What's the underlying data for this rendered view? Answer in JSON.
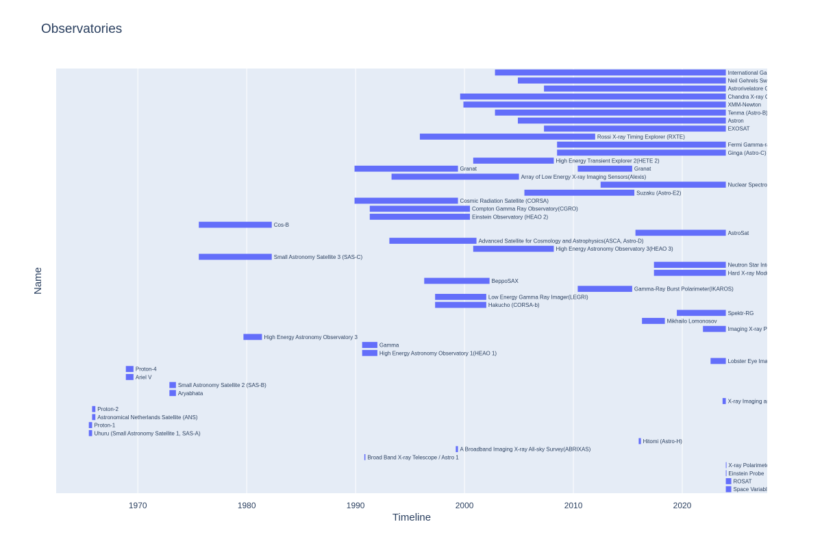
{
  "colors": {
    "bar": "#636efa",
    "plot_bg": "#e5ecf6",
    "grid": "#ffffff",
    "text": "#2a3f5f"
  },
  "chart_data": {
    "type": "bar",
    "orientation": "horizontal-timeline",
    "title": "Observatories",
    "xlabel": "Timeline",
    "ylabel": "Name",
    "xlim": [
      1962.5,
      2027.8
    ],
    "xticks": [
      1970,
      1980,
      1990,
      2000,
      2010,
      2020
    ],
    "grid": true,
    "show_ytick_labels": false,
    "rows": [
      {
        "label": "International Gamma-Ray Astrophysics Laboratory",
        "bars": [
          [
            2002.8,
            2024.0
          ]
        ]
      },
      {
        "label": "Neil Gehrels Swift Observatory",
        "bars": [
          [
            2004.9,
            2024.0
          ]
        ]
      },
      {
        "label": "Astrorivelatore Gamma ad Immagini Leggero",
        "bars": [
          [
            2007.3,
            2024.0
          ]
        ]
      },
      {
        "label": "Chandra X-ray Observatory",
        "bars": [
          [
            1999.6,
            2024.0
          ]
        ]
      },
      {
        "label": "XMM-Newton",
        "bars": [
          [
            1999.9,
            2024.0
          ]
        ]
      },
      {
        "label": "Tenma (Astro-B)",
        "bars": [
          [
            2002.8,
            2024.0
          ]
        ]
      },
      {
        "label": "Astron",
        "bars": [
          [
            2004.9,
            2024.0
          ]
        ]
      },
      {
        "label": "EXOSAT",
        "bars": [
          [
            2007.3,
            2024.0
          ]
        ]
      },
      {
        "label": "Rossi X-ray Timing Explorer (RXTE)",
        "bars": [
          [
            1995.9,
            2012.0
          ]
        ]
      },
      {
        "label": "Fermi Gamma-ray Space Telescope",
        "bars": [
          [
            2008.5,
            2024.0
          ]
        ]
      },
      {
        "label": "Ginga (Astro-C)",
        "bars": [
          [
            2008.5,
            2024.0
          ]
        ]
      },
      {
        "label": "High Energy Transient Explorer 2(HETE 2)",
        "bars": [
          [
            2000.8,
            2008.2
          ]
        ]
      },
      {
        "label": "Granat",
        "bars": [
          [
            1989.9,
            1999.4
          ],
          [
            2010.4,
            2015.4
          ]
        ]
      },
      {
        "label": "Array of Low Energy X-ray Imaging Sensors(Alexis)",
        "bars": [
          [
            1993.3,
            2005.0
          ]
        ]
      },
      {
        "label": "Nuclear Spectroscopic Telescope Array",
        "bars": [
          [
            2012.5,
            2024.0
          ]
        ]
      },
      {
        "label": "Suzaku (Astro-E2)",
        "bars": [
          [
            2005.5,
            2015.6
          ]
        ]
      },
      {
        "label": "Cosmic Radiation Satellite (CORSA)",
        "bars": [
          [
            1989.9,
            1999.4
          ]
        ]
      },
      {
        "label": "Compton Gamma Ray Observatory(CGRO)",
        "bars": [
          [
            1991.3,
            2000.5
          ]
        ]
      },
      {
        "label": "Einstein Observatory (HEAO 2)",
        "bars": [
          [
            1991.3,
            2000.5
          ]
        ]
      },
      {
        "label": "Cos-B",
        "bars": [
          [
            1975.6,
            1982.3
          ]
        ]
      },
      {
        "label": "AstroSat",
        "bars": [
          [
            2015.7,
            2024.0
          ]
        ]
      },
      {
        "label": "Advanced Satellite for Cosmology and Astrophysics(ASCA, Astro-D)",
        "bars": [
          [
            1993.1,
            2001.1
          ]
        ]
      },
      {
        "label": "High Energy Astronomy Observatory 3(HEAO 3)",
        "bars": [
          [
            2000.8,
            2008.2
          ]
        ]
      },
      {
        "label": "Small Astronomy Satellite 3 (SAS-C)",
        "bars": [
          [
            1975.6,
            1982.3
          ]
        ]
      },
      {
        "label": "Neutron Star Interior Composition Explorer",
        "bars": [
          [
            2017.4,
            2024.0
          ]
        ]
      },
      {
        "label": "Hard X-ray Modulation Telescope",
        "bars": [
          [
            2017.4,
            2024.0
          ]
        ]
      },
      {
        "label": "BeppoSAX",
        "bars": [
          [
            1996.3,
            2002.3
          ]
        ]
      },
      {
        "label": "Gamma-Ray Burst Polarimeter(IKAROS)",
        "bars": [
          [
            2010.4,
            2015.4
          ]
        ]
      },
      {
        "label": "Low Energy Gamma Ray Imager(LEGRI)",
        "bars": [
          [
            1997.3,
            2002.0
          ]
        ]
      },
      {
        "label": "Hakucho (CORSA-b)",
        "bars": [
          [
            1997.3,
            2002.0
          ]
        ]
      },
      {
        "label": "Spektr-RG",
        "bars": [
          [
            2019.5,
            2024.0
          ]
        ]
      },
      {
        "label": "Mikhailo Lomonosov",
        "bars": [
          [
            2016.3,
            2018.4
          ]
        ]
      },
      {
        "label": "Imaging X-ray Polarimetry Explorer",
        "bars": [
          [
            2021.9,
            2024.0
          ]
        ]
      },
      {
        "label": "High Energy Astronomy Observatory 3",
        "bars": [
          [
            1979.7,
            1981.4
          ]
        ]
      },
      {
        "label": "Gamma",
        "bars": [
          [
            1990.6,
            1992.0
          ]
        ]
      },
      {
        "label": "High Energy Astronomy Observatory 1(HEAO 1)",
        "bars": [
          [
            1990.6,
            1992.0
          ]
        ]
      },
      {
        "label": "Lobster Eye Imager for Astronomy",
        "bars": [
          [
            2022.6,
            2024.0
          ]
        ]
      },
      {
        "label": "Proton-4",
        "bars": [
          [
            1968.9,
            1969.6
          ]
        ]
      },
      {
        "label": "Ariel V",
        "bars": [
          [
            1968.9,
            1969.6
          ]
        ]
      },
      {
        "label": "Small Astronomy Satellite 2 (SAS-B)",
        "bars": [
          [
            1972.9,
            1973.5
          ]
        ]
      },
      {
        "label": "Aryabhata",
        "bars": [
          [
            1972.9,
            1973.5
          ]
        ]
      },
      {
        "label": "X-ray Imaging and Spectroscopy Mission",
        "bars": [
          [
            2023.7,
            2024.0
          ]
        ]
      },
      {
        "label": "Proton-2",
        "bars": [
          [
            1965.8,
            1966.1
          ]
        ]
      },
      {
        "label": "Astronomical Netherlands Satellite (ANS)",
        "bars": [
          [
            1965.8,
            1966.1
          ]
        ]
      },
      {
        "label": "Proton-1",
        "bars": [
          [
            1965.5,
            1965.8
          ]
        ]
      },
      {
        "label": "Uhuru (Small Astronomy Satellite 1, SAS-A)",
        "bars": [
          [
            1965.5,
            1965.8
          ]
        ]
      },
      {
        "label": "Hitomi (Astro-H)",
        "bars": [
          [
            2016.0,
            2016.2
          ]
        ]
      },
      {
        "label": "A Broadband Imaging X-ray All-sky Survey(ABRIXAS)",
        "bars": [
          [
            1999.2,
            1999.4
          ]
        ]
      },
      {
        "label": "Broad Band X-ray Telescope / Astro 1",
        "bars": [
          [
            1990.8,
            1990.9
          ]
        ]
      },
      {
        "label": "X-ray Polarimeter Satellite",
        "bars": [
          [
            2024.0,
            2024.05
          ]
        ]
      },
      {
        "label": "Einstein Probe",
        "bars": [
          [
            2024.0,
            2024.05
          ]
        ]
      },
      {
        "label": "ROSAT",
        "bars": [
          [
            2024.0,
            2024.5
          ]
        ]
      },
      {
        "label": "Space Variable Objects Monitor(SVOM)",
        "bars": [
          [
            2024.0,
            2024.5
          ]
        ]
      }
    ]
  }
}
